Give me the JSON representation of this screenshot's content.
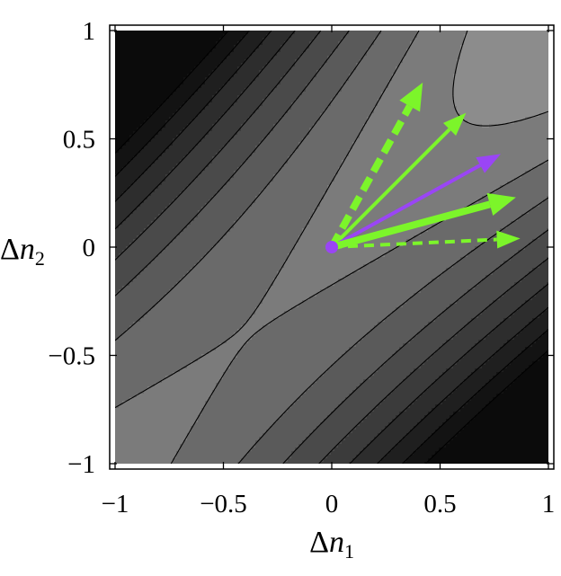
{
  "chart_data": {
    "type": "contour",
    "xlabel_parts": {
      "delta": "Δ",
      "var": "n",
      "sub": "1"
    },
    "ylabel_parts": {
      "delta": "Δ",
      "var": "n",
      "sub": "2"
    },
    "xlim": [
      -1,
      1
    ],
    "ylim": [
      -1,
      1
    ],
    "x_ticks": [
      {
        "value": -1,
        "label": "−1"
      },
      {
        "value": -0.5,
        "label": "−0.5"
      },
      {
        "value": 0,
        "label": "0"
      },
      {
        "value": 0.5,
        "label": "0.5"
      },
      {
        "value": 1,
        "label": "1"
      }
    ],
    "y_ticks": [
      {
        "value": -1,
        "label": "−1"
      },
      {
        "value": -0.5,
        "label": "−0.5"
      },
      {
        "value": 0,
        "label": "0"
      },
      {
        "value": 0.5,
        "label": "0.5"
      },
      {
        "value": 1,
        "label": "1"
      }
    ],
    "contour_levels": [
      -0.75,
      -0.45,
      -0.15,
      0.15,
      0.45,
      0.75,
      1.05,
      1.35,
      1.65,
      1.95,
      2.25,
      2.55,
      2.85,
      3.15
    ],
    "fill_colors": [
      "#f4f4f4",
      "#e2e2e2",
      "#cbcbcb",
      "#b3b3b3",
      "#a0a0a0",
      "#8c8c8c",
      "#7b7b7b",
      "#6a6a6a",
      "#5a5a5a",
      "#4a4a4a",
      "#3b3b3b",
      "#2d2d2d",
      "#1f1f1f",
      "#131313",
      "#0b0b0b"
    ],
    "origin": {
      "x": 0,
      "y": 0,
      "color": "#9a45f5"
    },
    "vectors": [
      {
        "x": 0.42,
        "y": 0.76,
        "color": "#7cf52a",
        "style": "dashed-thick"
      },
      {
        "x": 0.62,
        "y": 0.62,
        "color": "#7cf52a",
        "style": "solid"
      },
      {
        "x": 0.78,
        "y": 0.43,
        "color": "#9a45f5",
        "style": "solid"
      },
      {
        "x": 0.85,
        "y": 0.23,
        "color": "#7cf52a",
        "style": "solid-thick"
      },
      {
        "x": 0.87,
        "y": 0.04,
        "color": "#7cf52a",
        "style": "dashed"
      }
    ]
  }
}
